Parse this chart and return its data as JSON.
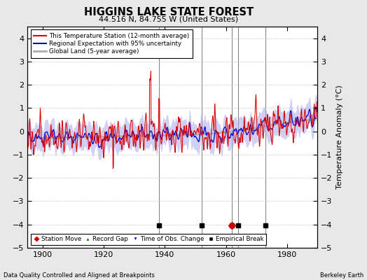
{
  "title": "HIGGINS LAKE STATE FOREST",
  "subtitle": "44.516 N, 84.755 W (United States)",
  "ylabel": "Temperature Anomaly (°C)",
  "xlabel_note": "Data Quality Controlled and Aligned at Breakpoints",
  "credit": "Berkeley Earth",
  "xlim": [
    1895,
    1990
  ],
  "ylim": [
    -5,
    4.5
  ],
  "yticks": [
    -5,
    -4,
    -3,
    -2,
    -1,
    0,
    1,
    2,
    3,
    4
  ],
  "xticks": [
    1900,
    1920,
    1940,
    1960,
    1980
  ],
  "bg_color": "#e8e8e8",
  "plot_bg_color": "#ffffff",
  "station_color": "#dd0000",
  "regional_color": "#0000cc",
  "regional_fill": "#aaaaee",
  "global_color": "#aaaaaa",
  "legend_entries": [
    "This Temperature Station (12-month average)",
    "Regional Expectation with 95% uncertainty",
    "Global Land (5-year average)"
  ],
  "empirical_breaks": [
    1938,
    1952,
    1962,
    1964,
    1973
  ],
  "station_move_year": 1962,
  "seed": 17
}
